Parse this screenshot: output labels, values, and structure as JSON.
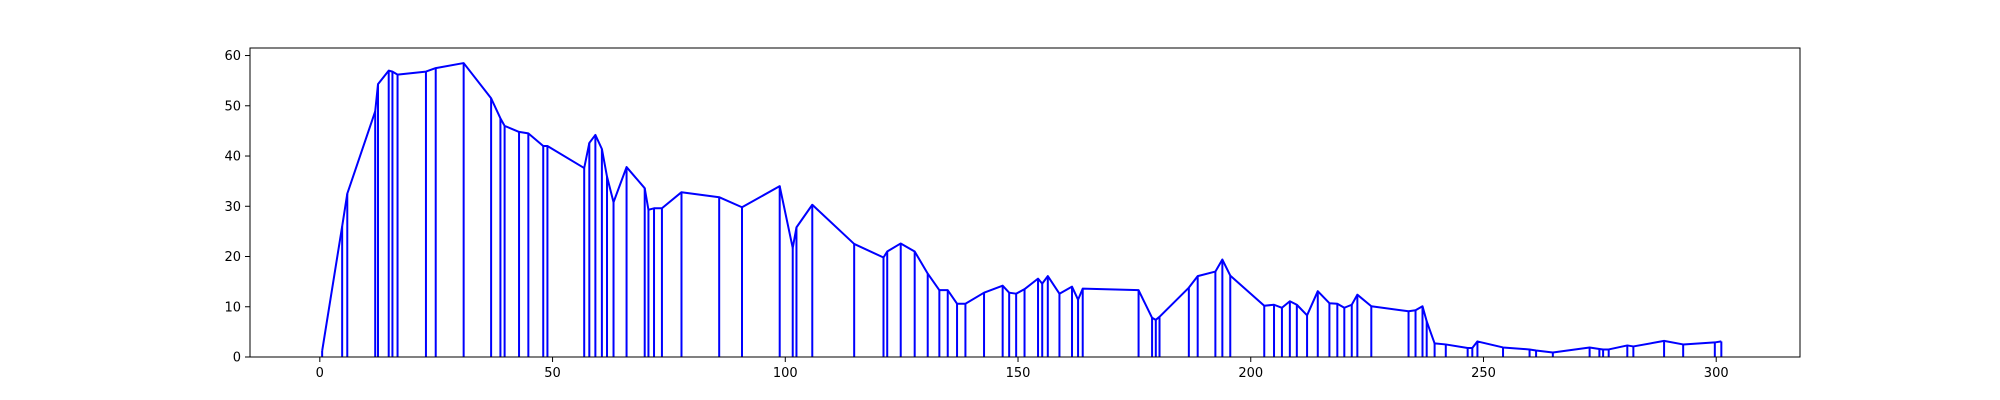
{
  "colors": {
    "series": "#0000ff",
    "axes": "#000000",
    "background": "#ffffff"
  },
  "chart_data": {
    "type": "line",
    "title": "",
    "xlabel": "",
    "ylabel": "",
    "xlim": [
      -15,
      318
    ],
    "ylim": [
      0,
      61.5
    ],
    "grid": false,
    "legend": "none",
    "x_ticks": [
      0,
      50,
      100,
      150,
      200,
      250,
      300
    ],
    "y_ticks": [
      0,
      10,
      20,
      30,
      40,
      50,
      60
    ],
    "note_marks": "each data point is also joined to the x-axis by a vertical line",
    "series": [
      {
        "x": [
          0.5,
          4.8,
          5.9,
          11.9,
          12.5,
          14.8,
          15.6,
          16.7,
          22.8,
          24.9,
          30.9,
          36.8,
          38.8,
          39.7,
          42.8,
          44.8,
          48,
          48.9,
          56.8,
          57.9,
          59.2,
          60.6,
          61.7,
          63.1,
          65.9,
          69.8,
          70.6,
          71.8,
          73.5,
          77.7,
          85.8,
          90.7,
          98.8,
          101.6,
          102.4,
          105.8,
          114.8,
          121.1,
          121.9,
          124.8,
          127.8,
          130.6,
          133.1,
          134.9,
          136.9,
          138.7,
          142.7,
          146.7,
          148.1,
          149.6,
          151.4,
          154.3,
          155.2,
          156.4,
          158.9,
          161.6,
          162.9,
          163.9,
          175.9,
          178.8,
          179.6,
          180.4,
          186.7,
          188.6,
          192.4,
          193.9,
          195.6,
          202.9,
          205,
          206.7,
          208.4,
          209.9,
          212.1,
          214.4,
          216.9,
          218.6,
          220.1,
          221.7,
          222.9,
          225.9,
          233.9,
          235.4,
          236.9,
          237.8,
          239.5,
          241.9,
          246.6,
          247.6,
          248.7,
          254.2,
          259.9,
          261.3,
          264.9,
          272.8,
          274.9,
          275.7,
          276.9,
          280.9,
          282.2,
          288.8,
          292.9,
          299.7,
          301.1
        ],
        "y": [
          1.2,
          26,
          32.5,
          48.9,
          54.3,
          57,
          56.8,
          56.2,
          56.8,
          57.5,
          58.5,
          51.5,
          47.5,
          46,
          44.8,
          44.5,
          42,
          42,
          37.6,
          42.6,
          44.2,
          41.4,
          35.9,
          30.8,
          37.8,
          33.6,
          29.3,
          29.6,
          29.6,
          32.8,
          31.8,
          29.8,
          34,
          21.7,
          25.8,
          30.3,
          22.5,
          19.8,
          21,
          22.6,
          21,
          16.6,
          13.3,
          13.3,
          10.6,
          10.6,
          12.8,
          14.2,
          12.8,
          12.6,
          13.5,
          15.6,
          14.6,
          16.1,
          12.6,
          14,
          11.4,
          13.6,
          13.3,
          7.8,
          7.4,
          8,
          13.8,
          16.1,
          17,
          19.4,
          16.2,
          10.2,
          10.4,
          9.8,
          11.1,
          10.4,
          8.3,
          13.1,
          10.7,
          10.6,
          9.8,
          10.4,
          12.4,
          10.1,
          9.1,
          9.3,
          10.1,
          7.1,
          2.7,
          2.5,
          1.8,
          1.8,
          3.1,
          1.9,
          1.5,
          1.3,
          0.9,
          1.9,
          1.6,
          1.5,
          1.5,
          2.3,
          2.1,
          3.2,
          2.5,
          2.9,
          3.1
        ]
      }
    ]
  }
}
